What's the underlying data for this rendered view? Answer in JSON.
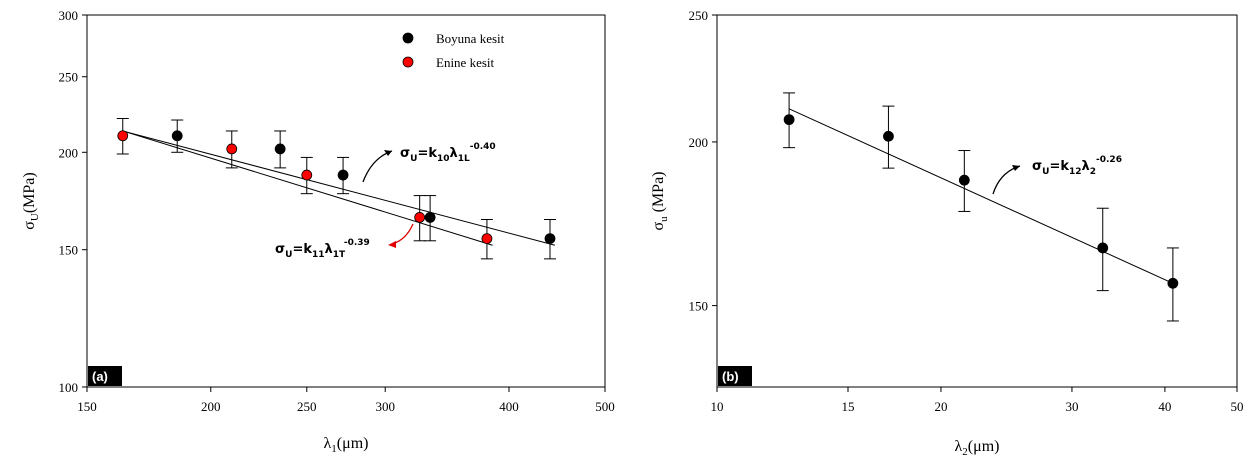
{
  "chart_data": [
    {
      "type": "scatter",
      "panel_label": "(a)",
      "xlabel": {
        "base": "λ",
        "sub": "1",
        "rest": "(μm)"
      },
      "ylabel": {
        "base": "σ",
        "sub": "U",
        "rest": "(MPa)"
      },
      "x_scale": "log",
      "y_scale": "log",
      "xlim": [
        150,
        500
      ],
      "ylim": [
        100,
        300
      ],
      "x_ticks": [
        150,
        200,
        250,
        300,
        400,
        500
      ],
      "y_ticks": [
        100,
        150,
        200,
        250,
        300
      ],
      "legend_position": "top-right",
      "series": [
        {
          "name": "Boyuna kesit",
          "color": "#000000",
          "points": [
            {
              "x": 185,
              "y": 210,
              "err": 10
            },
            {
              "x": 235,
              "y": 202,
              "err": 11
            },
            {
              "x": 272,
              "y": 187,
              "err": 10
            },
            {
              "x": 333,
              "y": 165,
              "err": 11
            },
            {
              "x": 440,
              "y": 155,
              "err": 9
            }
          ]
        },
        {
          "name": "Enine kesit",
          "color": "#ff0000",
          "points": [
            {
              "x": 163,
              "y": 210,
              "err": 11
            },
            {
              "x": 210,
              "y": 202,
              "err": 11
            },
            {
              "x": 250,
              "y": 187,
              "err": 10
            },
            {
              "x": 325,
              "y": 165,
              "err": 11
            },
            {
              "x": 380,
              "y": 155,
              "err": 9
            }
          ]
        }
      ],
      "fits": [
        {
          "x": [
            163,
            445
          ],
          "y": [
            213,
            152
          ]
        },
        {
          "x": [
            163,
            385
          ],
          "y": [
            213,
            152
          ]
        }
      ],
      "annotations": [
        {
          "base": "σ",
          "sub1": "U",
          "mid": "=k",
          "sub2": "10",
          "lam": "λ",
          "sub3": "1L",
          "exp": "-0.40",
          "arrow_color": "#000000"
        },
        {
          "base": "σ",
          "sub1": "U",
          "mid": "=k",
          "sub2": "11",
          "lam": "λ",
          "sub3": "1T",
          "exp": "-0.39",
          "arrow_color": "#e00000"
        }
      ]
    },
    {
      "type": "scatter",
      "panel_label": "(b)",
      "xlabel": {
        "base": "λ",
        "sub": "2",
        "rest": "(μm)"
      },
      "ylabel": {
        "base": "σ",
        "sub": "u",
        "rest": " (MPa)"
      },
      "x_scale": "log",
      "y_scale": "log",
      "xlim": [
        10,
        50
      ],
      "ylim": [
        130,
        250
      ],
      "x_ticks": [
        10,
        15,
        20,
        30,
        40,
        50
      ],
      "y_ticks": [
        150,
        200,
        250
      ],
      "series": [
        {
          "name": "",
          "color": "#000000",
          "points": [
            {
              "x": 12.5,
              "y": 208,
              "err": 10
            },
            {
              "x": 17,
              "y": 202,
              "err": 11
            },
            {
              "x": 21.5,
              "y": 187,
              "err": 10
            },
            {
              "x": 33,
              "y": 166,
              "err": 12
            },
            {
              "x": 41,
              "y": 156,
              "err": 10
            }
          ]
        }
      ],
      "fits": [
        {
          "x": [
            12.5,
            41
          ],
          "y": [
            212,
            156
          ]
        }
      ],
      "annotations": [
        {
          "base": "σ",
          "sub1": "U",
          "mid": "=k",
          "sub2": "12",
          "lam": "λ",
          "sub3": "2",
          "exp": "-0.26",
          "arrow_color": "#000000"
        }
      ]
    }
  ]
}
